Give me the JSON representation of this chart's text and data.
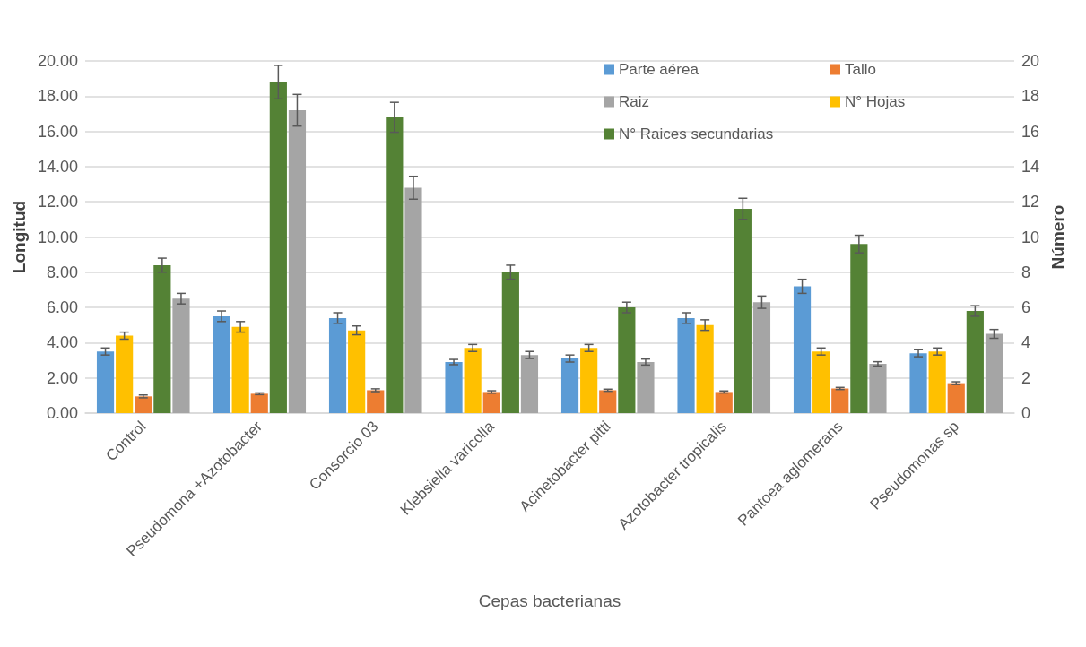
{
  "chart_data": {
    "type": "bar",
    "xlabel": "Cepas bacterianas",
    "ylabel": "Longitud",
    "y2label": "Número",
    "categories": [
      "Control",
      "Pseudomona +Azotobacter",
      "Consorcio 03",
      "Klebsiella varicolla",
      "Acinetobacter pitti",
      "Azotobacter tropicalis",
      "Pantoea aglomerans",
      "Pseudomonas sp"
    ],
    "series": [
      {
        "name": "Parte aérea",
        "color": "#5b9bd5",
        "values": [
          3.5,
          5.5,
          5.4,
          2.9,
          3.1,
          5.4,
          7.2,
          3.4
        ],
        "errors": [
          0.2,
          0.3,
          0.3,
          0.15,
          0.2,
          0.3,
          0.4,
          0.2
        ]
      },
      {
        "name": "N° Hojas",
        "color": "#ffc000",
        "axis": "y2",
        "values": [
          4.4,
          4.9,
          4.7,
          3.7,
          3.7,
          5.0,
          3.5,
          3.5
        ],
        "errors": [
          0.2,
          0.3,
          0.25,
          0.2,
          0.2,
          0.3,
          0.2,
          0.2
        ]
      },
      {
        "name": "Tallo",
        "color": "#ed7d31",
        "values": [
          0.95,
          1.1,
          1.3,
          1.2,
          1.3,
          1.2,
          1.4,
          1.7
        ],
        "errors": [
          0.08,
          0.05,
          0.08,
          0.07,
          0.06,
          0.06,
          0.06,
          0.08
        ]
      },
      {
        "name": "N° Raices secundarias",
        "color": "#548235",
        "axis": "y2",
        "values": [
          8.4,
          18.8,
          16.8,
          8.0,
          6.0,
          11.6,
          9.6,
          5.8
        ],
        "errors": [
          0.4,
          0.95,
          0.85,
          0.4,
          0.3,
          0.6,
          0.5,
          0.3
        ]
      },
      {
        "name": "Raiz",
        "color": "#a5a5a5",
        "values": [
          6.5,
          17.2,
          12.8,
          3.3,
          2.9,
          6.3,
          2.8,
          4.5
        ],
        "errors": [
          0.3,
          0.9,
          0.65,
          0.2,
          0.17,
          0.35,
          0.12,
          0.25
        ]
      }
    ],
    "ylim": [
      0,
      20
    ],
    "yticks": [
      {
        "value": 0,
        "label": "0.00"
      },
      {
        "value": 2,
        "label": "2.00"
      },
      {
        "value": 4,
        "label": "4.00"
      },
      {
        "value": 6,
        "label": "6.00"
      },
      {
        "value": 8,
        "label": "8.00"
      },
      {
        "value": 10,
        "label": "10.00"
      },
      {
        "value": 12,
        "label": "12.00"
      },
      {
        "value": 14,
        "label": "14.00"
      },
      {
        "value": 16,
        "label": "16.00"
      },
      {
        "value": 18,
        "label": "18.00"
      },
      {
        "value": 20,
        "label": "20.00"
      }
    ],
    "y2lim": [
      0,
      20
    ],
    "y2ticks": [
      0,
      2,
      4,
      6,
      8,
      10,
      12,
      14,
      16,
      18,
      20
    ],
    "grid": "y",
    "legend": "top right"
  }
}
